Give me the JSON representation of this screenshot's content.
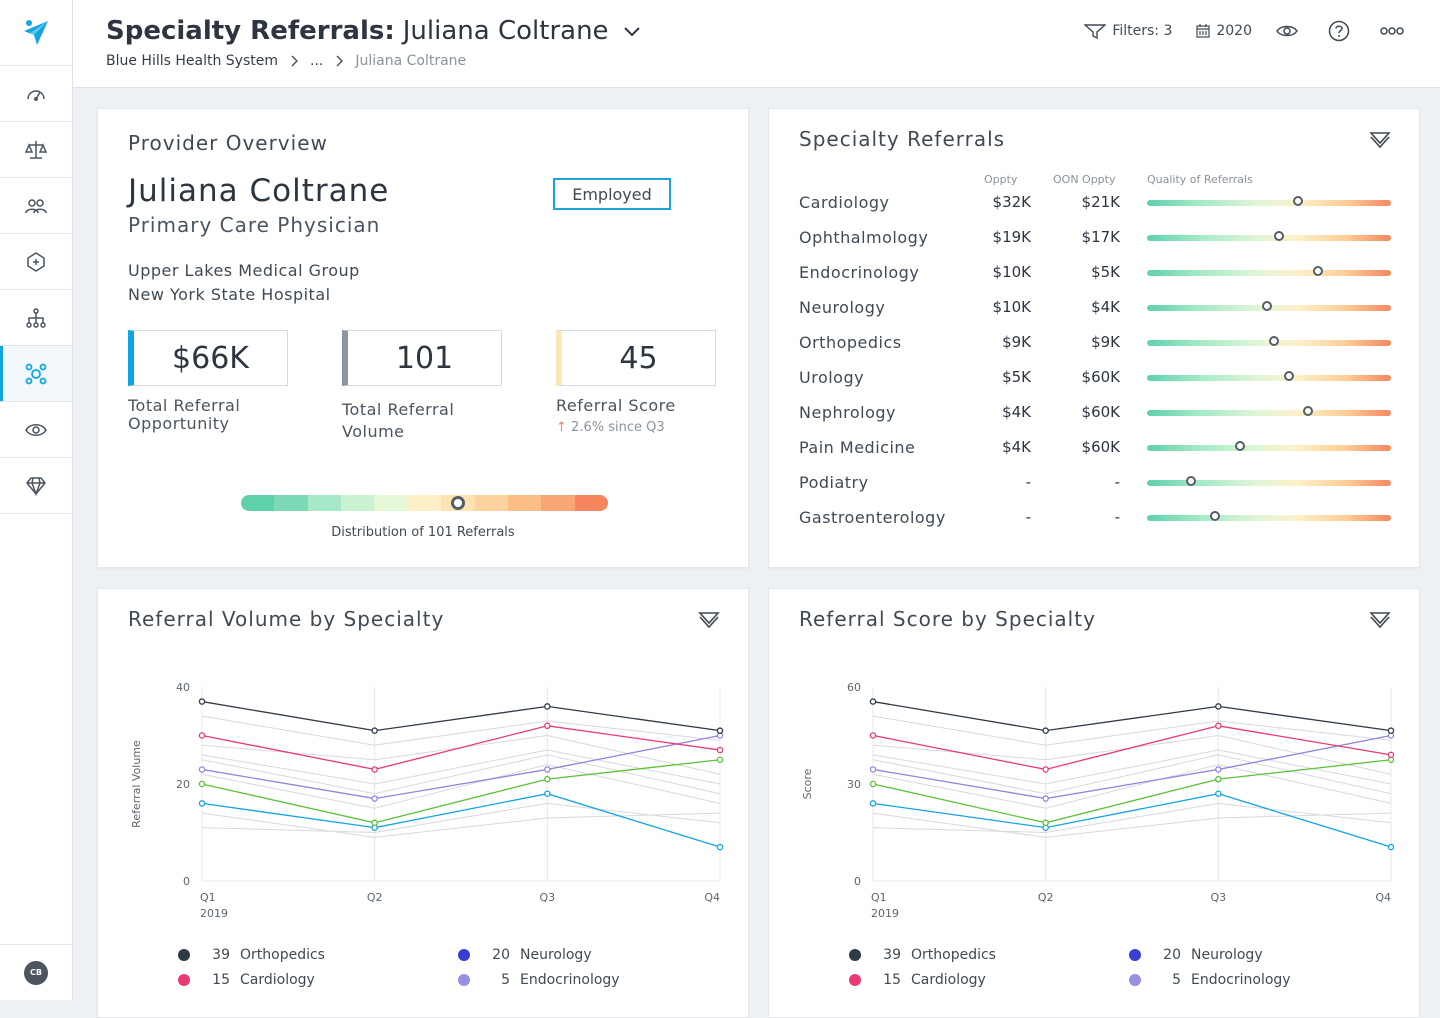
{
  "header": {
    "title_bold": "Specialty Referrals:",
    "title_name": "Juliana Coltrane",
    "breadcrumb": [
      "Blue Hills Health System",
      "...",
      "Juliana Coltrane"
    ],
    "filters_label": "Filters: 3",
    "year_label": "2020"
  },
  "sidebar": {
    "user_initials": "CB"
  },
  "provider_overview": {
    "title": "Provider Overview",
    "name": "Juliana Coltrane",
    "role": "Primary Care Physician",
    "status_badge": "Employed",
    "org_line1": "Upper Lakes Medical Group",
    "org_line2": "New York State Hospital",
    "kpis": [
      {
        "value": "$66K",
        "label": "Total Referral Opportunity",
        "accent": "#13a5e0"
      },
      {
        "value": "101",
        "label": "Total Referral Volume",
        "accent": "#8c96a0"
      },
      {
        "value": "45",
        "label": "Referral Score",
        "accent": "#fbe7b8",
        "subtext": "2.6% since Q3"
      }
    ],
    "distribution_label": "Distribution of 101 Referrals",
    "distribution_marker_fraction": 0.59
  },
  "specialty_referrals": {
    "title": "Specialty Referrals",
    "columns": [
      "Oppty",
      "OON Oppty",
      "Quality of Referrals"
    ],
    "rows": [
      {
        "name": "Cardiology",
        "oppty": "$32K",
        "oon": "$21K",
        "quality": 0.62
      },
      {
        "name": "Ophthalmology",
        "oppty": "$19K",
        "oon": "$17K",
        "quality": 0.54
      },
      {
        "name": "Endocrinology",
        "oppty": "$10K",
        "oon": "$5K",
        "quality": 0.7
      },
      {
        "name": "Neurology",
        "oppty": "$10K",
        "oon": "$4K",
        "quality": 0.49
      },
      {
        "name": "Orthopedics",
        "oppty": "$9K",
        "oon": "$9K",
        "quality": 0.52
      },
      {
        "name": "Urology",
        "oppty": "$5K",
        "oon": "$60K",
        "quality": 0.58
      },
      {
        "name": "Nephrology",
        "oppty": "$4K",
        "oon": "$60K",
        "quality": 0.66
      },
      {
        "name": "Pain Medicine",
        "oppty": "$4K",
        "oon": "$60K",
        "quality": 0.38
      },
      {
        "name": "Podiatry",
        "oppty": "-",
        "oon": "-",
        "quality": 0.18
      },
      {
        "name": "Gastroenterology",
        "oppty": "-",
        "oon": "-",
        "quality": 0.28
      }
    ]
  },
  "volume_chart": {
    "title": "Referral Volume by Specialty",
    "legend": [
      {
        "count": "39",
        "name": "Orthopedics",
        "color": "#2f3a46"
      },
      {
        "count": "20",
        "name": "Neurology",
        "color": "#3b3fd0"
      },
      {
        "count": "15",
        "name": "Cardiology",
        "color": "#ea3a72"
      },
      {
        "count": "5",
        "name": "Endocrinology",
        "color": "#9890e0"
      }
    ]
  },
  "score_chart": {
    "title": "Referral Score by Specialty",
    "legend": [
      {
        "count": "39",
        "name": "Orthopedics",
        "color": "#2f3a46"
      },
      {
        "count": "20",
        "name": "Neurology",
        "color": "#3b3fd0"
      },
      {
        "count": "15",
        "name": "Cardiology",
        "color": "#ea3a72"
      },
      {
        "count": "5",
        "name": "Endocrinology",
        "color": "#9890e0"
      }
    ]
  },
  "chart_data": [
    {
      "type": "line",
      "title": "Referral Volume by Specialty",
      "xlabel": "",
      "ylabel": "Referral Volume",
      "categories": [
        "Q1",
        "Q2",
        "Q3",
        "Q4"
      ],
      "x_sublabel": "2019",
      "yticks": [
        0,
        20,
        40
      ],
      "ylim": [
        0,
        40
      ],
      "series": [
        {
          "color": "#2f3a46",
          "values": [
            37,
            31,
            36,
            31
          ]
        },
        {
          "color": "#ea3a72",
          "values": [
            30,
            23,
            32,
            27
          ]
        },
        {
          "color": "#8f86dd",
          "values": [
            23,
            17,
            23,
            30
          ]
        },
        {
          "color": "#5cc23a",
          "values": [
            20,
            12,
            21,
            25
          ]
        },
        {
          "color": "#13a5e0",
          "values": [
            16,
            11,
            18,
            7
          ]
        },
        {
          "color": "#d6d9dd",
          "values": [
            34,
            28,
            33,
            29
          ]
        },
        {
          "color": "#d6d9dd",
          "values": [
            28,
            25,
            30,
            22
          ]
        },
        {
          "color": "#d6d9dd",
          "values": [
            26,
            20,
            27,
            20
          ]
        },
        {
          "color": "#d6d9dd",
          "values": [
            25,
            18,
            26,
            18
          ]
        },
        {
          "color": "#d6d9dd",
          "values": [
            22,
            15,
            24,
            16
          ]
        },
        {
          "color": "#d6d9dd",
          "values": [
            14,
            9,
            13,
            14
          ]
        },
        {
          "color": "#d6d9dd",
          "values": [
            11,
            10,
            16,
            12
          ]
        }
      ]
    },
    {
      "type": "line",
      "title": "Referral Score by Specialty",
      "xlabel": "",
      "ylabel": "Score",
      "categories": [
        "Q1",
        "Q2",
        "Q3",
        "Q4"
      ],
      "x_sublabel": "2019",
      "yticks": [
        0,
        30,
        60
      ],
      "ylim": [
        0,
        60
      ],
      "series": [
        {
          "color": "#2f3a46",
          "values": [
            55.5,
            46.5,
            54,
            46.5
          ]
        },
        {
          "color": "#ea3a72",
          "values": [
            45,
            34.5,
            48,
            39
          ]
        },
        {
          "color": "#8f86dd",
          "values": [
            34.5,
            25.5,
            34.5,
            45
          ]
        },
        {
          "color": "#5cc23a",
          "values": [
            30,
            18,
            31.5,
            37.5
          ]
        },
        {
          "color": "#13a5e0",
          "values": [
            24,
            16.5,
            27,
            10.5
          ]
        },
        {
          "color": "#d6d9dd",
          "values": [
            51,
            42,
            49.5,
            43.5
          ]
        },
        {
          "color": "#d6d9dd",
          "values": [
            42,
            37.5,
            45,
            33
          ]
        },
        {
          "color": "#d6d9dd",
          "values": [
            39,
            30,
            40.5,
            30
          ]
        },
        {
          "color": "#d6d9dd",
          "values": [
            37.5,
            27,
            39,
            27
          ]
        },
        {
          "color": "#d6d9dd",
          "values": [
            33,
            22.5,
            36,
            24
          ]
        },
        {
          "color": "#d6d9dd",
          "values": [
            21,
            13.5,
            19.5,
            21
          ]
        },
        {
          "color": "#d6d9dd",
          "values": [
            16.5,
            15,
            24,
            18
          ]
        }
      ]
    }
  ]
}
